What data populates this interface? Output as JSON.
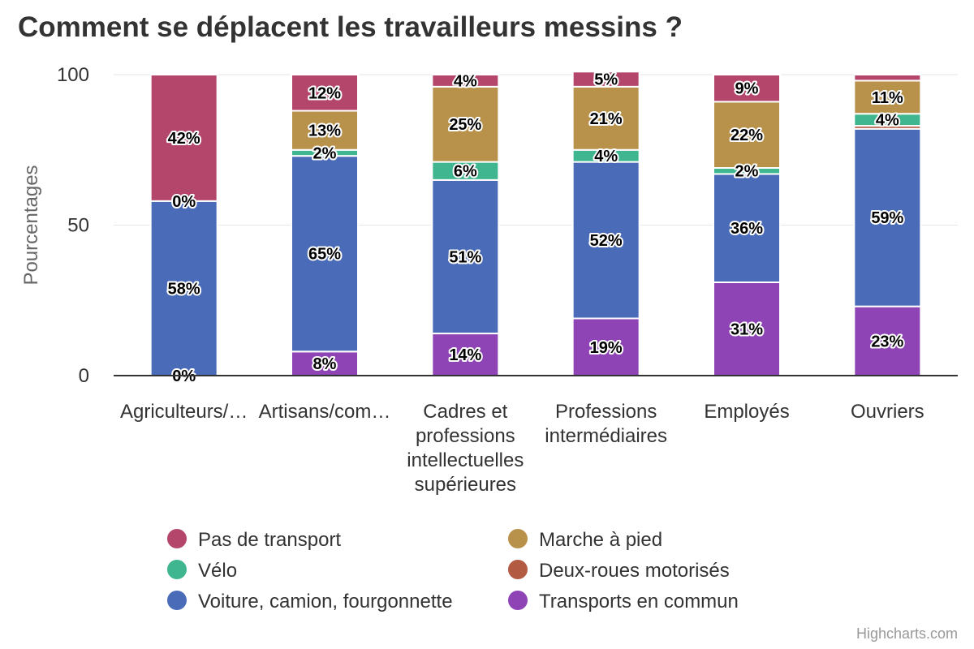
{
  "chart_data": {
    "type": "bar",
    "stacked": true,
    "title": "Comment se déplacent les travailleurs messins ?",
    "xlabel": "",
    "ylabel": "Pourcentages",
    "ylim": [
      0,
      100
    ],
    "yticks": [
      0,
      50,
      100
    ],
    "grid": true,
    "legend_position": "bottom",
    "categories": [
      "Agriculteurs/…",
      "Artisans/com…",
      "Cadres et professions intellectuelles supérieures",
      "Professions intermédiaires",
      "Employés",
      "Ouvriers"
    ],
    "series": [
      {
        "name": "Pas de transport",
        "color": "#b5466b",
        "values": [
          42,
          12,
          4,
          5,
          9,
          2
        ]
      },
      {
        "name": "Marche à pied",
        "color": "#b8924a",
        "values": [
          0,
          13,
          25,
          21,
          22,
          11
        ]
      },
      {
        "name": "Vélo",
        "color": "#3fb68f",
        "values": [
          0,
          2,
          6,
          4,
          2,
          4
        ]
      },
      {
        "name": "Deux-roues motorisés",
        "color": "#b35a43",
        "values": [
          0,
          0,
          0,
          0,
          0,
          1
        ]
      },
      {
        "name": "Voiture, camion, fourgonnette",
        "color": "#4a6bb7",
        "values": [
          58,
          65,
          51,
          52,
          36,
          59
        ]
      },
      {
        "name": "Transports en commun",
        "color": "#8e44b5",
        "values": [
          0,
          8,
          14,
          19,
          31,
          23
        ]
      }
    ],
    "data_labels": [
      [
        42,
        12,
        4,
        5,
        9,
        null
      ],
      [
        null,
        13,
        25,
        21,
        22,
        11
      ],
      [
        0,
        2,
        6,
        4,
        2,
        4
      ],
      [
        null,
        null,
        null,
        null,
        null,
        null
      ],
      [
        58,
        65,
        51,
        52,
        36,
        59
      ],
      [
        0,
        8,
        14,
        19,
        31,
        23
      ]
    ],
    "legend_order": [
      0,
      1,
      2,
      3,
      4,
      5
    ]
  },
  "credits": "Highcharts.com"
}
